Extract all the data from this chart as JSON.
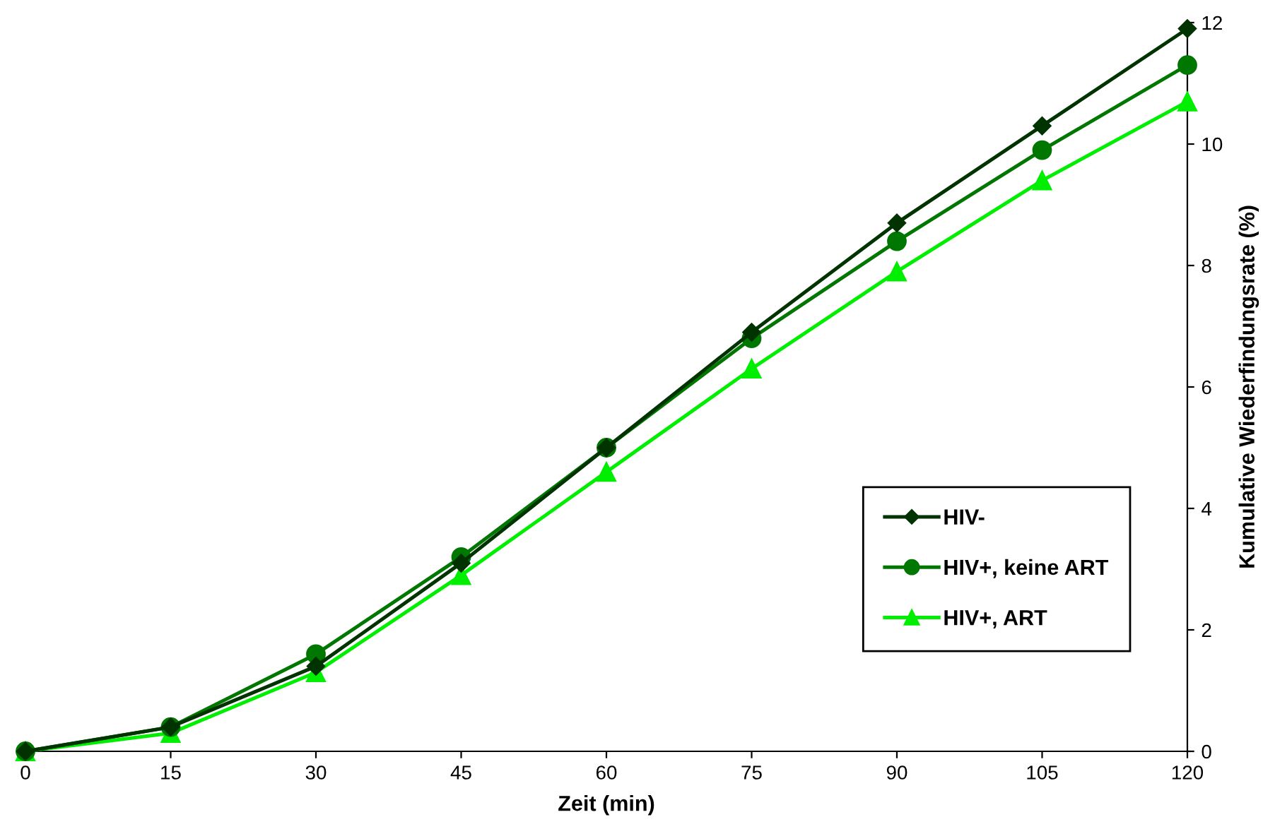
{
  "chart_data": {
    "type": "line",
    "xlabel": "Zeit (min)",
    "ylabel": "Kumulative Wiederfindungsrate (%)",
    "x": [
      0,
      15,
      30,
      45,
      60,
      75,
      90,
      105,
      120
    ],
    "series": [
      {
        "name": "HIV-",
        "color": "#003300",
        "marker": "diamond",
        "values": [
          0,
          0.4,
          1.4,
          3.1,
          5.0,
          6.9,
          8.7,
          10.3,
          11.9
        ]
      },
      {
        "name": "HIV+, keine ART",
        "color": "#007700",
        "marker": "circle",
        "values": [
          0,
          0.4,
          1.6,
          3.2,
          5.0,
          6.8,
          8.4,
          9.9,
          11.3
        ]
      },
      {
        "name": "HIV+, ART",
        "color": "#00ee00",
        "marker": "triangle",
        "values": [
          0,
          0.3,
          1.3,
          2.9,
          4.6,
          6.3,
          7.9,
          9.4,
          10.7
        ]
      }
    ],
    "xlim": [
      0,
      120
    ],
    "xticks": [
      0,
      15,
      30,
      45,
      60,
      75,
      90,
      105,
      120
    ],
    "ylim": [
      0,
      12
    ],
    "yticks": [
      0,
      2,
      4,
      6,
      8,
      10,
      12
    ],
    "grid": false,
    "legend": "right",
    "line_style": "solid"
  }
}
